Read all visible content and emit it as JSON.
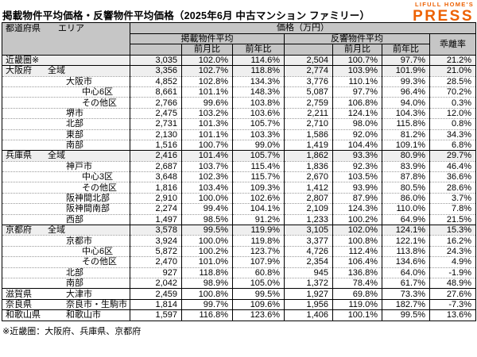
{
  "page": {
    "title": "掲載物件平均価格・反響物件平均価格（2025年6月 中古マンション ファミリー）",
    "logo_line1": "LIFULL HOME'S",
    "logo_line2": "PRESS",
    "footnote": "※近畿圏：大阪府、兵庫県、京都府"
  },
  "colors": {
    "logo_orange": "#ed6103",
    "header_gray": "#c6c6c6",
    "shaded_row": "#efefef",
    "grid_black": "#000000",
    "row_divider_dotted": "#999999"
  },
  "chart_data": {
    "type": "table",
    "title": "掲載物件平均価格・反響物件平均価格（2025年6月 中古マンション ファミリー）",
    "header": {
      "pref_label": "都道府県",
      "area_label": "エリア",
      "price_label": "価格（万円）",
      "listed_label": "掲載物件平均",
      "response_label": "反響物件平均",
      "mom_label": "前月比",
      "yoy_label": "前年比",
      "deviation_label": "乖離率"
    },
    "columns": [
      "都道府県 エリア",
      "掲載物件平均",
      "前月比",
      "前年比",
      "反響物件平均",
      "前月比",
      "前年比",
      "乖離率"
    ],
    "rows": [
      {
        "pref": "近畿圏※",
        "area": "",
        "level": 1,
        "shaded": true,
        "section_start": true,
        "cells": [
          "3,035",
          "102.0%",
          "114.6%",
          "2,504",
          "100.7%",
          "97.7%",
          "21.2%"
        ]
      },
      {
        "pref": "大阪府",
        "area": "全域",
        "level": 1,
        "shaded": true,
        "section_start": true,
        "cells": [
          "3,356",
          "102.7%",
          "118.8%",
          "2,774",
          "103.9%",
          "101.9%",
          "21.0%"
        ]
      },
      {
        "pref": "",
        "area": "大阪市",
        "level": 2,
        "shaded": false,
        "section_start": false,
        "cells": [
          "4,852",
          "102.8%",
          "134.3%",
          "3,776",
          "110.1%",
          "99.3%",
          "28.5%"
        ]
      },
      {
        "pref": "",
        "area": "中心6区",
        "level": 3,
        "shaded": false,
        "section_start": false,
        "cells": [
          "8,661",
          "101.1%",
          "148.3%",
          "5,087",
          "97.7%",
          "96.4%",
          "70.2%"
        ]
      },
      {
        "pref": "",
        "area": "その他区",
        "level": 3,
        "shaded": false,
        "section_start": false,
        "cells": [
          "2,766",
          "99.6%",
          "103.8%",
          "2,759",
          "106.8%",
          "94.0%",
          "0.3%"
        ]
      },
      {
        "pref": "",
        "area": "堺市",
        "level": 2,
        "shaded": false,
        "section_start": false,
        "cells": [
          "2,475",
          "103.2%",
          "103.6%",
          "2,211",
          "124.1%",
          "104.3%",
          "12.0%"
        ]
      },
      {
        "pref": "",
        "area": "北部",
        "level": 2,
        "shaded": false,
        "section_start": false,
        "cells": [
          "2,731",
          "101.3%",
          "105.7%",
          "2,710",
          "98.0%",
          "115.8%",
          "0.8%"
        ]
      },
      {
        "pref": "",
        "area": "東部",
        "level": 2,
        "shaded": false,
        "section_start": false,
        "cells": [
          "2,130",
          "101.1%",
          "103.3%",
          "1,586",
          "92.0%",
          "81.2%",
          "34.3%"
        ]
      },
      {
        "pref": "",
        "area": "南部",
        "level": 2,
        "shaded": false,
        "section_start": false,
        "cells": [
          "1,516",
          "100.7%",
          "99.0%",
          "1,419",
          "104.4%",
          "109.1%",
          "6.8%"
        ]
      },
      {
        "pref": "兵庫県",
        "area": "全域",
        "level": 1,
        "shaded": true,
        "section_start": true,
        "cells": [
          "2,416",
          "101.4%",
          "105.7%",
          "1,862",
          "93.3%",
          "80.9%",
          "29.7%"
        ]
      },
      {
        "pref": "",
        "area": "神戸市",
        "level": 2,
        "shaded": false,
        "section_start": false,
        "cells": [
          "2,687",
          "103.7%",
          "115.4%",
          "1,836",
          "92.3%",
          "83.9%",
          "46.4%"
        ]
      },
      {
        "pref": "",
        "area": "中心3区",
        "level": 3,
        "shaded": false,
        "section_start": false,
        "cells": [
          "3,648",
          "102.3%",
          "115.7%",
          "2,670",
          "103.5%",
          "87.8%",
          "36.6%"
        ]
      },
      {
        "pref": "",
        "area": "その他区",
        "level": 3,
        "shaded": false,
        "section_start": false,
        "cells": [
          "1,816",
          "103.4%",
          "109.3%",
          "1,412",
          "93.9%",
          "80.5%",
          "28.6%"
        ]
      },
      {
        "pref": "",
        "area": "阪神間北部",
        "level": 2,
        "shaded": false,
        "section_start": false,
        "cells": [
          "2,910",
          "100.0%",
          "102.6%",
          "2,807",
          "87.9%",
          "86.0%",
          "3.7%"
        ]
      },
      {
        "pref": "",
        "area": "阪神間南部",
        "level": 2,
        "shaded": false,
        "section_start": false,
        "cells": [
          "2,274",
          "99.4%",
          "104.1%",
          "2,109",
          "124.3%",
          "110.0%",
          "7.8%"
        ]
      },
      {
        "pref": "",
        "area": "西部",
        "level": 2,
        "shaded": false,
        "section_start": false,
        "cells": [
          "1,497",
          "98.5%",
          "91.2%",
          "1,233",
          "100.2%",
          "64.9%",
          "21.5%"
        ]
      },
      {
        "pref": "京都府",
        "area": "全域",
        "level": 1,
        "shaded": true,
        "section_start": true,
        "cells": [
          "3,578",
          "99.5%",
          "119.9%",
          "3,105",
          "102.0%",
          "124.1%",
          "15.3%"
        ]
      },
      {
        "pref": "",
        "area": "京都市",
        "level": 2,
        "shaded": false,
        "section_start": false,
        "cells": [
          "3,924",
          "100.0%",
          "119.8%",
          "3,377",
          "100.8%",
          "122.1%",
          "16.2%"
        ]
      },
      {
        "pref": "",
        "area": "中心6区",
        "level": 3,
        "shaded": false,
        "section_start": false,
        "cells": [
          "5,872",
          "100.2%",
          "123.7%",
          "4,726",
          "112.4%",
          "113.8%",
          "24.3%"
        ]
      },
      {
        "pref": "",
        "area": "その他区",
        "level": 3,
        "shaded": false,
        "section_start": false,
        "cells": [
          "2,470",
          "101.0%",
          "107.9%",
          "2,354",
          "106.4%",
          "134.6%",
          "4.9%"
        ]
      },
      {
        "pref": "",
        "area": "北部",
        "level": 2,
        "shaded": false,
        "section_start": false,
        "cells": [
          "927",
          "118.8%",
          "60.8%",
          "945",
          "136.8%",
          "64.0%",
          "-1.9%"
        ]
      },
      {
        "pref": "",
        "area": "南部",
        "level": 2,
        "shaded": false,
        "section_start": false,
        "cells": [
          "2,042",
          "98.9%",
          "105.0%",
          "1,372",
          "78.4%",
          "61.7%",
          "48.9%"
        ]
      },
      {
        "pref": "滋賀県",
        "area": "大津市",
        "level": 2,
        "shaded": false,
        "section_start": true,
        "cells": [
          "2,459",
          "100.8%",
          "99.5%",
          "1,927",
          "69.8%",
          "73.3%",
          "27.6%"
        ]
      },
      {
        "pref": "奈良県",
        "area": "奈良市・生駒市",
        "level": 2,
        "shaded": false,
        "section_start": true,
        "cells": [
          "1,814",
          "99.7%",
          "109.6%",
          "1,956",
          "119.0%",
          "182.7%",
          "-7.3%"
        ]
      },
      {
        "pref": "和歌山県",
        "area": "和歌山市",
        "level": 2,
        "shaded": false,
        "section_start": true,
        "cells": [
          "1,597",
          "116.8%",
          "123.6%",
          "1,406",
          "100.1%",
          "99.5%",
          "13.6%"
        ]
      }
    ]
  }
}
